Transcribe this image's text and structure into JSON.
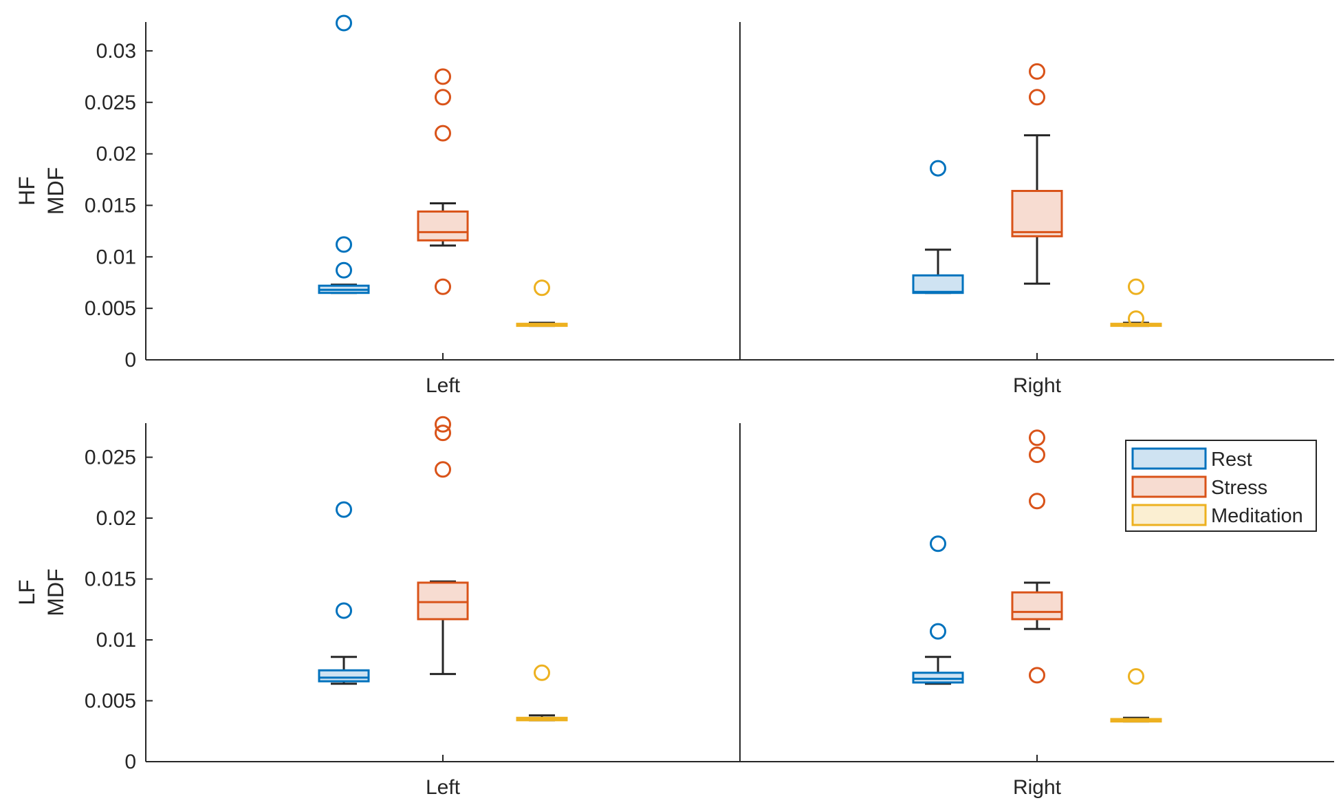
{
  "chart_data": [
    {
      "type": "box",
      "ylabel_line1": "HF",
      "ylabel_line2": "MDF",
      "ylim": [
        0,
        0.0328
      ],
      "yticks": [
        0,
        0.005,
        0.01,
        0.015,
        0.02,
        0.025,
        0.03
      ],
      "ytick_labels": [
        "0",
        "0.005",
        "0.01",
        "0.015",
        "0.02",
        "0.025",
        "0.03"
      ],
      "groups": [
        {
          "name": "Left",
          "boxes": [
            {
              "series": "Rest",
              "lower_whisker": 0.0065,
              "q1": 0.0065,
              "median": 0.0068,
              "q3": 0.0072,
              "upper_whisker": 0.0073,
              "outliers": [
                0.0087,
                0.0112,
                0.0327
              ]
            },
            {
              "series": "Stress",
              "lower_whisker": 0.0111,
              "q1": 0.0116,
              "median": 0.0124,
              "q3": 0.0144,
              "upper_whisker": 0.0152,
              "outliers": [
                0.0071,
                0.022,
                0.0255,
                0.0275
              ]
            },
            {
              "series": "Meditation",
              "lower_whisker": 0.0033,
              "q1": 0.0033,
              "median": 0.0034,
              "q3": 0.0035,
              "upper_whisker": 0.0036,
              "outliers": [
                0.007
              ]
            }
          ]
        },
        {
          "name": "Right",
          "boxes": [
            {
              "series": "Rest",
              "lower_whisker": 0.0065,
              "q1": 0.0065,
              "median": 0.0066,
              "q3": 0.0082,
              "upper_whisker": 0.0107,
              "outliers": [
                0.0186
              ]
            },
            {
              "series": "Stress",
              "lower_whisker": 0.0074,
              "q1": 0.012,
              "median": 0.0124,
              "q3": 0.0164,
              "upper_whisker": 0.0218,
              "outliers": [
                0.0255,
                0.028
              ]
            },
            {
              "series": "Meditation",
              "lower_whisker": 0.0033,
              "q1": 0.0033,
              "median": 0.0034,
              "q3": 0.0035,
              "upper_whisker": 0.0036,
              "outliers": [
                0.004,
                0.0071
              ]
            }
          ]
        }
      ]
    },
    {
      "type": "box",
      "ylabel_line1": "LF",
      "ylabel_line2": "MDF",
      "ylim": [
        0,
        0.0278
      ],
      "yticks": [
        0,
        0.005,
        0.01,
        0.015,
        0.02,
        0.025
      ],
      "ytick_labels": [
        "0",
        "0.005",
        "0.01",
        "0.015",
        "0.02",
        "0.025"
      ],
      "groups": [
        {
          "name": "Left",
          "boxes": [
            {
              "series": "Rest",
              "lower_whisker": 0.0064,
              "q1": 0.0066,
              "median": 0.0069,
              "q3": 0.0075,
              "upper_whisker": 0.0086,
              "outliers": [
                0.0124,
                0.0207
              ]
            },
            {
              "series": "Stress",
              "lower_whisker": 0.0072,
              "q1": 0.0117,
              "median": 0.0131,
              "q3": 0.0147,
              "upper_whisker": 0.0148,
              "outliers": [
                0.024,
                0.027,
                0.0277
              ]
            },
            {
              "series": "Meditation",
              "lower_whisker": 0.0034,
              "q1": 0.0034,
              "median": 0.0035,
              "q3": 0.0036,
              "upper_whisker": 0.0038,
              "outliers": [
                0.0073
              ]
            }
          ]
        },
        {
          "name": "Right",
          "boxes": [
            {
              "series": "Rest",
              "lower_whisker": 0.0064,
              "q1": 0.0065,
              "median": 0.0068,
              "q3": 0.0073,
              "upper_whisker": 0.0086,
              "outliers": [
                0.0107,
                0.0179
              ]
            },
            {
              "series": "Stress",
              "lower_whisker": 0.0109,
              "q1": 0.0117,
              "median": 0.0123,
              "q3": 0.0139,
              "upper_whisker": 0.0147,
              "outliers": [
                0.0071,
                0.0214,
                0.0252,
                0.0266
              ]
            },
            {
              "series": "Meditation",
              "lower_whisker": 0.0033,
              "q1": 0.0033,
              "median": 0.0034,
              "q3": 0.0035,
              "upper_whisker": 0.0036,
              "outliers": [
                0.007
              ]
            }
          ]
        }
      ]
    }
  ],
  "legend": {
    "position": "top-right",
    "entries": [
      {
        "label": "Rest",
        "stroke": "#0072BD",
        "fill": "#CFE3F2"
      },
      {
        "label": "Stress",
        "stroke": "#D95319",
        "fill": "#F7DCD1"
      },
      {
        "label": "Meditation",
        "stroke": "#EDB120",
        "fill": "#FBEFD2"
      }
    ]
  },
  "colors": {
    "Rest": {
      "stroke": "#0072BD",
      "fill": "#CFE3F2"
    },
    "Stress": {
      "stroke": "#D95319",
      "fill": "#F7DCD1"
    },
    "Meditation": {
      "stroke": "#EDB120",
      "fill": "#FBEFD2"
    },
    "whisker": "#262626",
    "axis": "#262626"
  }
}
